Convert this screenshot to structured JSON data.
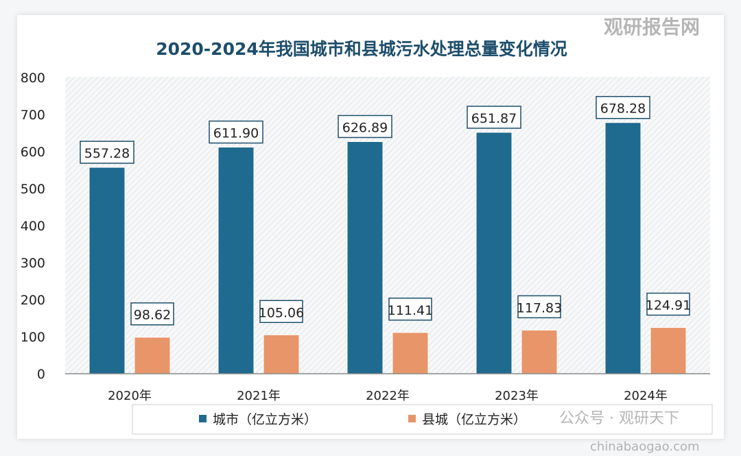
{
  "chart_data": {
    "type": "bar",
    "title": "2020-2024年我国城市和县城污水处理总量变化情况",
    "categories": [
      "2020年",
      "2021年",
      "2022年",
      "2023年",
      "2024年"
    ],
    "series": [
      {
        "name": "城市（亿立方米）",
        "values": [
          557.28,
          611.9,
          626.89,
          651.87,
          678.28
        ],
        "labels": [
          "557.28",
          "611.90",
          "626.89",
          "651.87",
          "678.28"
        ],
        "color": "#1f6a8f"
      },
      {
        "name": "县城（亿立方米）",
        "values": [
          98.62,
          105.06,
          111.41,
          117.83,
          124.91
        ],
        "labels": [
          "98.62",
          "105.06",
          "111.41",
          "117.83",
          "124.91"
        ],
        "color": "#e8956a"
      }
    ],
    "ylim": [
      0,
      800
    ],
    "yticks": [
      0,
      100,
      200,
      300,
      400,
      500,
      600,
      700,
      800
    ],
    "grid": false,
    "legend": "bottom"
  },
  "watermark": {
    "brand": "观研报告网",
    "url": "chinabaogao.com",
    "account": "公众号 · 观研天下"
  }
}
